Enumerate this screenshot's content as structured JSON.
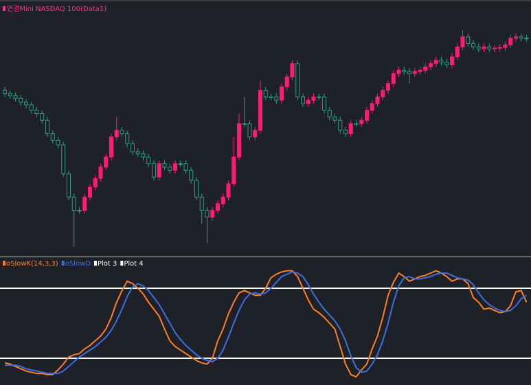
{
  "chart_data": [
    {
      "type": "candlestick",
      "title": "연결Mini NASDAQ 100(Data1)",
      "title_color": "#ff2d8a",
      "up_color": "#ff1a75",
      "down_color": "#2a9d82",
      "ylim": [
        0,
        370
      ],
      "open": [
        240,
        235,
        232,
        228,
        222,
        218,
        210,
        205,
        195,
        175,
        165,
        158,
        115,
        80,
        60,
        60,
        80,
        95,
        108,
        125,
        140,
        170,
        180,
        175,
        160,
        148,
        145,
        140,
        130,
        110,
        130,
        125,
        120,
        130,
        130,
        120,
        105,
        80,
        60,
        50,
        60,
        70,
        80,
        100,
        140,
        190,
        190,
        170,
        180,
        240,
        230,
        230,
        225,
        245,
        260,
        280,
        230,
        220,
        225,
        230,
        230,
        210,
        200,
        195,
        180,
        175,
        190,
        190,
        195,
        210,
        220,
        230,
        240,
        250,
        265,
        270,
        268,
        265,
        268,
        270,
        275,
        280,
        285,
        282,
        278,
        290,
        305,
        320,
        310,
        305,
        302,
        305,
        302,
        303,
        304,
        308,
        318,
        320,
        318
      ],
      "high": [
        245,
        240,
        237,
        233,
        227,
        223,
        215,
        210,
        200,
        180,
        170,
        163,
        120,
        85,
        65,
        85,
        100,
        113,
        130,
        145,
        175,
        200,
        185,
        180,
        165,
        153,
        150,
        145,
        135,
        135,
        135,
        130,
        135,
        135,
        135,
        125,
        110,
        85,
        65,
        65,
        75,
        85,
        105,
        170,
        205,
        230,
        195,
        185,
        255,
        245,
        235,
        235,
        250,
        265,
        285,
        285,
        235,
        230,
        235,
        235,
        235,
        215,
        205,
        200,
        185,
        195,
        195,
        200,
        215,
        225,
        235,
        245,
        255,
        270,
        275,
        275,
        273,
        273,
        275,
        280,
        285,
        290,
        290,
        287,
        295,
        310,
        330,
        325,
        315,
        310,
        310,
        310,
        308,
        309,
        313,
        323,
        325,
        325,
        323
      ],
      "low": [
        230,
        227,
        223,
        217,
        213,
        205,
        200,
        190,
        170,
        160,
        153,
        110,
        75,
        5,
        55,
        55,
        75,
        90,
        103,
        120,
        135,
        165,
        170,
        155,
        143,
        140,
        135,
        125,
        105,
        105,
        120,
        115,
        115,
        125,
        115,
        100,
        75,
        40,
        10,
        45,
        55,
        65,
        75,
        95,
        135,
        185,
        165,
        165,
        175,
        225,
        225,
        220,
        220,
        240,
        255,
        225,
        215,
        215,
        220,
        225,
        205,
        195,
        190,
        175,
        170,
        170,
        185,
        185,
        190,
        205,
        215,
        225,
        235,
        245,
        260,
        263,
        250,
        260,
        263,
        265,
        270,
        275,
        277,
        273,
        273,
        285,
        300,
        305,
        300,
        297,
        297,
        297,
        297,
        298,
        299,
        303,
        313,
        313,
        313
      ],
      "close": [
        235,
        232,
        228,
        222,
        218,
        210,
        205,
        195,
        175,
        165,
        158,
        115,
        80,
        60,
        60,
        80,
        95,
        108,
        125,
        140,
        170,
        180,
        175,
        160,
        148,
        145,
        140,
        130,
        110,
        130,
        125,
        120,
        130,
        130,
        120,
        105,
        80,
        60,
        50,
        60,
        70,
        80,
        100,
        140,
        190,
        190,
        170,
        180,
        240,
        230,
        230,
        225,
        245,
        260,
        280,
        230,
        220,
        225,
        230,
        230,
        210,
        200,
        195,
        180,
        175,
        190,
        190,
        195,
        210,
        220,
        230,
        240,
        250,
        265,
        270,
        268,
        265,
        268,
        270,
        275,
        280,
        285,
        282,
        278,
        290,
        305,
        320,
        310,
        305,
        302,
        305,
        302,
        303,
        304,
        308,
        318,
        320,
        318,
        318
      ]
    },
    {
      "type": "line",
      "ylim": [
        0,
        100
      ],
      "series": [
        {
          "name": "oSlowK(14,3,3)",
          "color": "#ff7f27",
          "values": [
            16,
            15,
            13,
            11,
            9,
            8,
            7,
            7,
            6,
            6,
            10,
            15,
            21,
            23,
            24,
            28,
            31,
            35,
            39,
            45,
            55,
            68,
            78,
            86,
            84,
            80,
            75,
            68,
            62,
            56,
            45,
            35,
            30,
            27,
            24,
            21,
            18,
            16,
            15,
            20,
            35,
            45,
            58,
            68,
            76,
            78,
            76,
            74,
            74,
            80,
            89,
            92,
            94,
            95,
            95,
            90,
            80,
            70,
            62,
            59,
            55,
            50,
            45,
            30,
            15,
            6,
            4,
            10,
            15,
            28,
            39,
            55,
            74,
            85,
            93,
            90,
            86,
            88,
            90,
            91,
            93,
            95,
            93,
            90,
            86,
            88,
            88,
            84,
            72,
            68,
            62,
            63,
            61,
            59,
            60,
            65,
            77,
            78,
            68
          ]
        },
        {
          "name": "oSlowD",
          "color": "#3d6fe0",
          "values": [
            14,
            14,
            14,
            13,
            11,
            10,
            9,
            8,
            7,
            7,
            7,
            9,
            13,
            17,
            21,
            24,
            27,
            30,
            34,
            38,
            44,
            52,
            62,
            73,
            81,
            84,
            82,
            78,
            72,
            66,
            58,
            50,
            42,
            36,
            31,
            27,
            23,
            20,
            18,
            17,
            20,
            27,
            38,
            50,
            61,
            70,
            75,
            76,
            75,
            76,
            80,
            85,
            90,
            92,
            94,
            93,
            90,
            83,
            75,
            68,
            62,
            57,
            52,
            45,
            35,
            22,
            12,
            8,
            9,
            15,
            23,
            35,
            50,
            68,
            82,
            89,
            90,
            88,
            88,
            89,
            90,
            92,
            93,
            93,
            91,
            89,
            88,
            87,
            83,
            76,
            70,
            66,
            63,
            61,
            60,
            61,
            65,
            71,
            74
          ]
        }
      ],
      "hlines": [
        {
          "name": "Plot 3",
          "color": "#ffffff",
          "value": 80
        },
        {
          "name": "Plot 4",
          "color": "#ffffff",
          "value": 20
        }
      ]
    }
  ]
}
